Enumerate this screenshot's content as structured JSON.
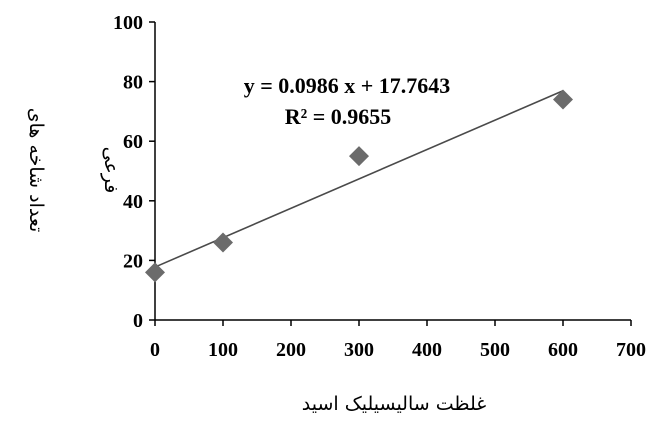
{
  "chart_data": {
    "type": "scatter",
    "x": [
      0,
      100,
      300,
      600
    ],
    "y": [
      16,
      26,
      55,
      74
    ],
    "xlim": [
      0,
      700
    ],
    "ylim": [
      0,
      100
    ],
    "xticks": [
      0,
      100,
      200,
      300,
      400,
      500,
      600,
      700
    ],
    "yticks": [
      0,
      20,
      40,
      60,
      80,
      100
    ],
    "xlabel": "غلظت سالیسیلیک اسید",
    "ylabel_line1": "تعداد شاخه های",
    "ylabel_line2": "فرعی",
    "trendline": {
      "slope": 0.0986,
      "intercept": 17.7643,
      "equation": "y = 0.0986 x + 17.7643",
      "r_squared": "R² = 0.9655"
    },
    "grid": false,
    "marker": "diamond",
    "colors": {
      "marker": "#6b6b6b",
      "line": "#4a4a4a",
      "axis": "#000000"
    }
  }
}
